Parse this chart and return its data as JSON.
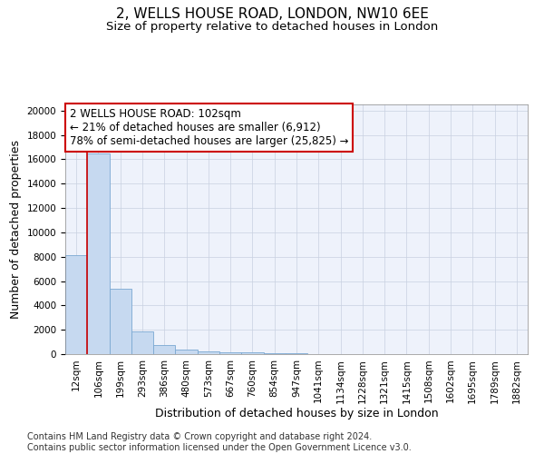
{
  "title_line1": "2, WELLS HOUSE ROAD, LONDON, NW10 6EE",
  "title_line2": "Size of property relative to detached houses in London",
  "xlabel": "Distribution of detached houses by size in London",
  "ylabel": "Number of detached properties",
  "bar_labels": [
    "12sqm",
    "106sqm",
    "199sqm",
    "293sqm",
    "386sqm",
    "480sqm",
    "573sqm",
    "667sqm",
    "760sqm",
    "854sqm",
    "947sqm",
    "1041sqm",
    "1134sqm",
    "1228sqm",
    "1321sqm",
    "1415sqm",
    "1508sqm",
    "1602sqm",
    "1695sqm",
    "1789sqm",
    "1882sqm"
  ],
  "bar_heights": [
    8100,
    16500,
    5400,
    1850,
    750,
    350,
    250,
    160,
    150,
    80,
    50,
    35,
    20,
    15,
    12,
    10,
    8,
    6,
    5,
    4,
    3
  ],
  "bar_color": "#c6d9f0",
  "bar_edge_color": "#7aa8d2",
  "grid_color": "#c8d0e0",
  "background_color": "#eef2fb",
  "vline_x": 0.5,
  "vline_color": "#cc0000",
  "annotation_text": "2 WELLS HOUSE ROAD: 102sqm\n← 21% of detached houses are smaller (6,912)\n78% of semi-detached houses are larger (25,825) →",
  "annotation_box_facecolor": "#ffffff",
  "annotation_box_edgecolor": "#cc0000",
  "ylim": [
    0,
    20500
  ],
  "yticks": [
    0,
    2000,
    4000,
    6000,
    8000,
    10000,
    12000,
    14000,
    16000,
    18000,
    20000
  ],
  "footnote": "Contains HM Land Registry data © Crown copyright and database right 2024.\nContains public sector information licensed under the Open Government Licence v3.0.",
  "title_fontsize": 11,
  "subtitle_fontsize": 9.5,
  "axis_label_fontsize": 9,
  "tick_fontsize": 7.5,
  "annotation_fontsize": 8.5,
  "footnote_fontsize": 7
}
